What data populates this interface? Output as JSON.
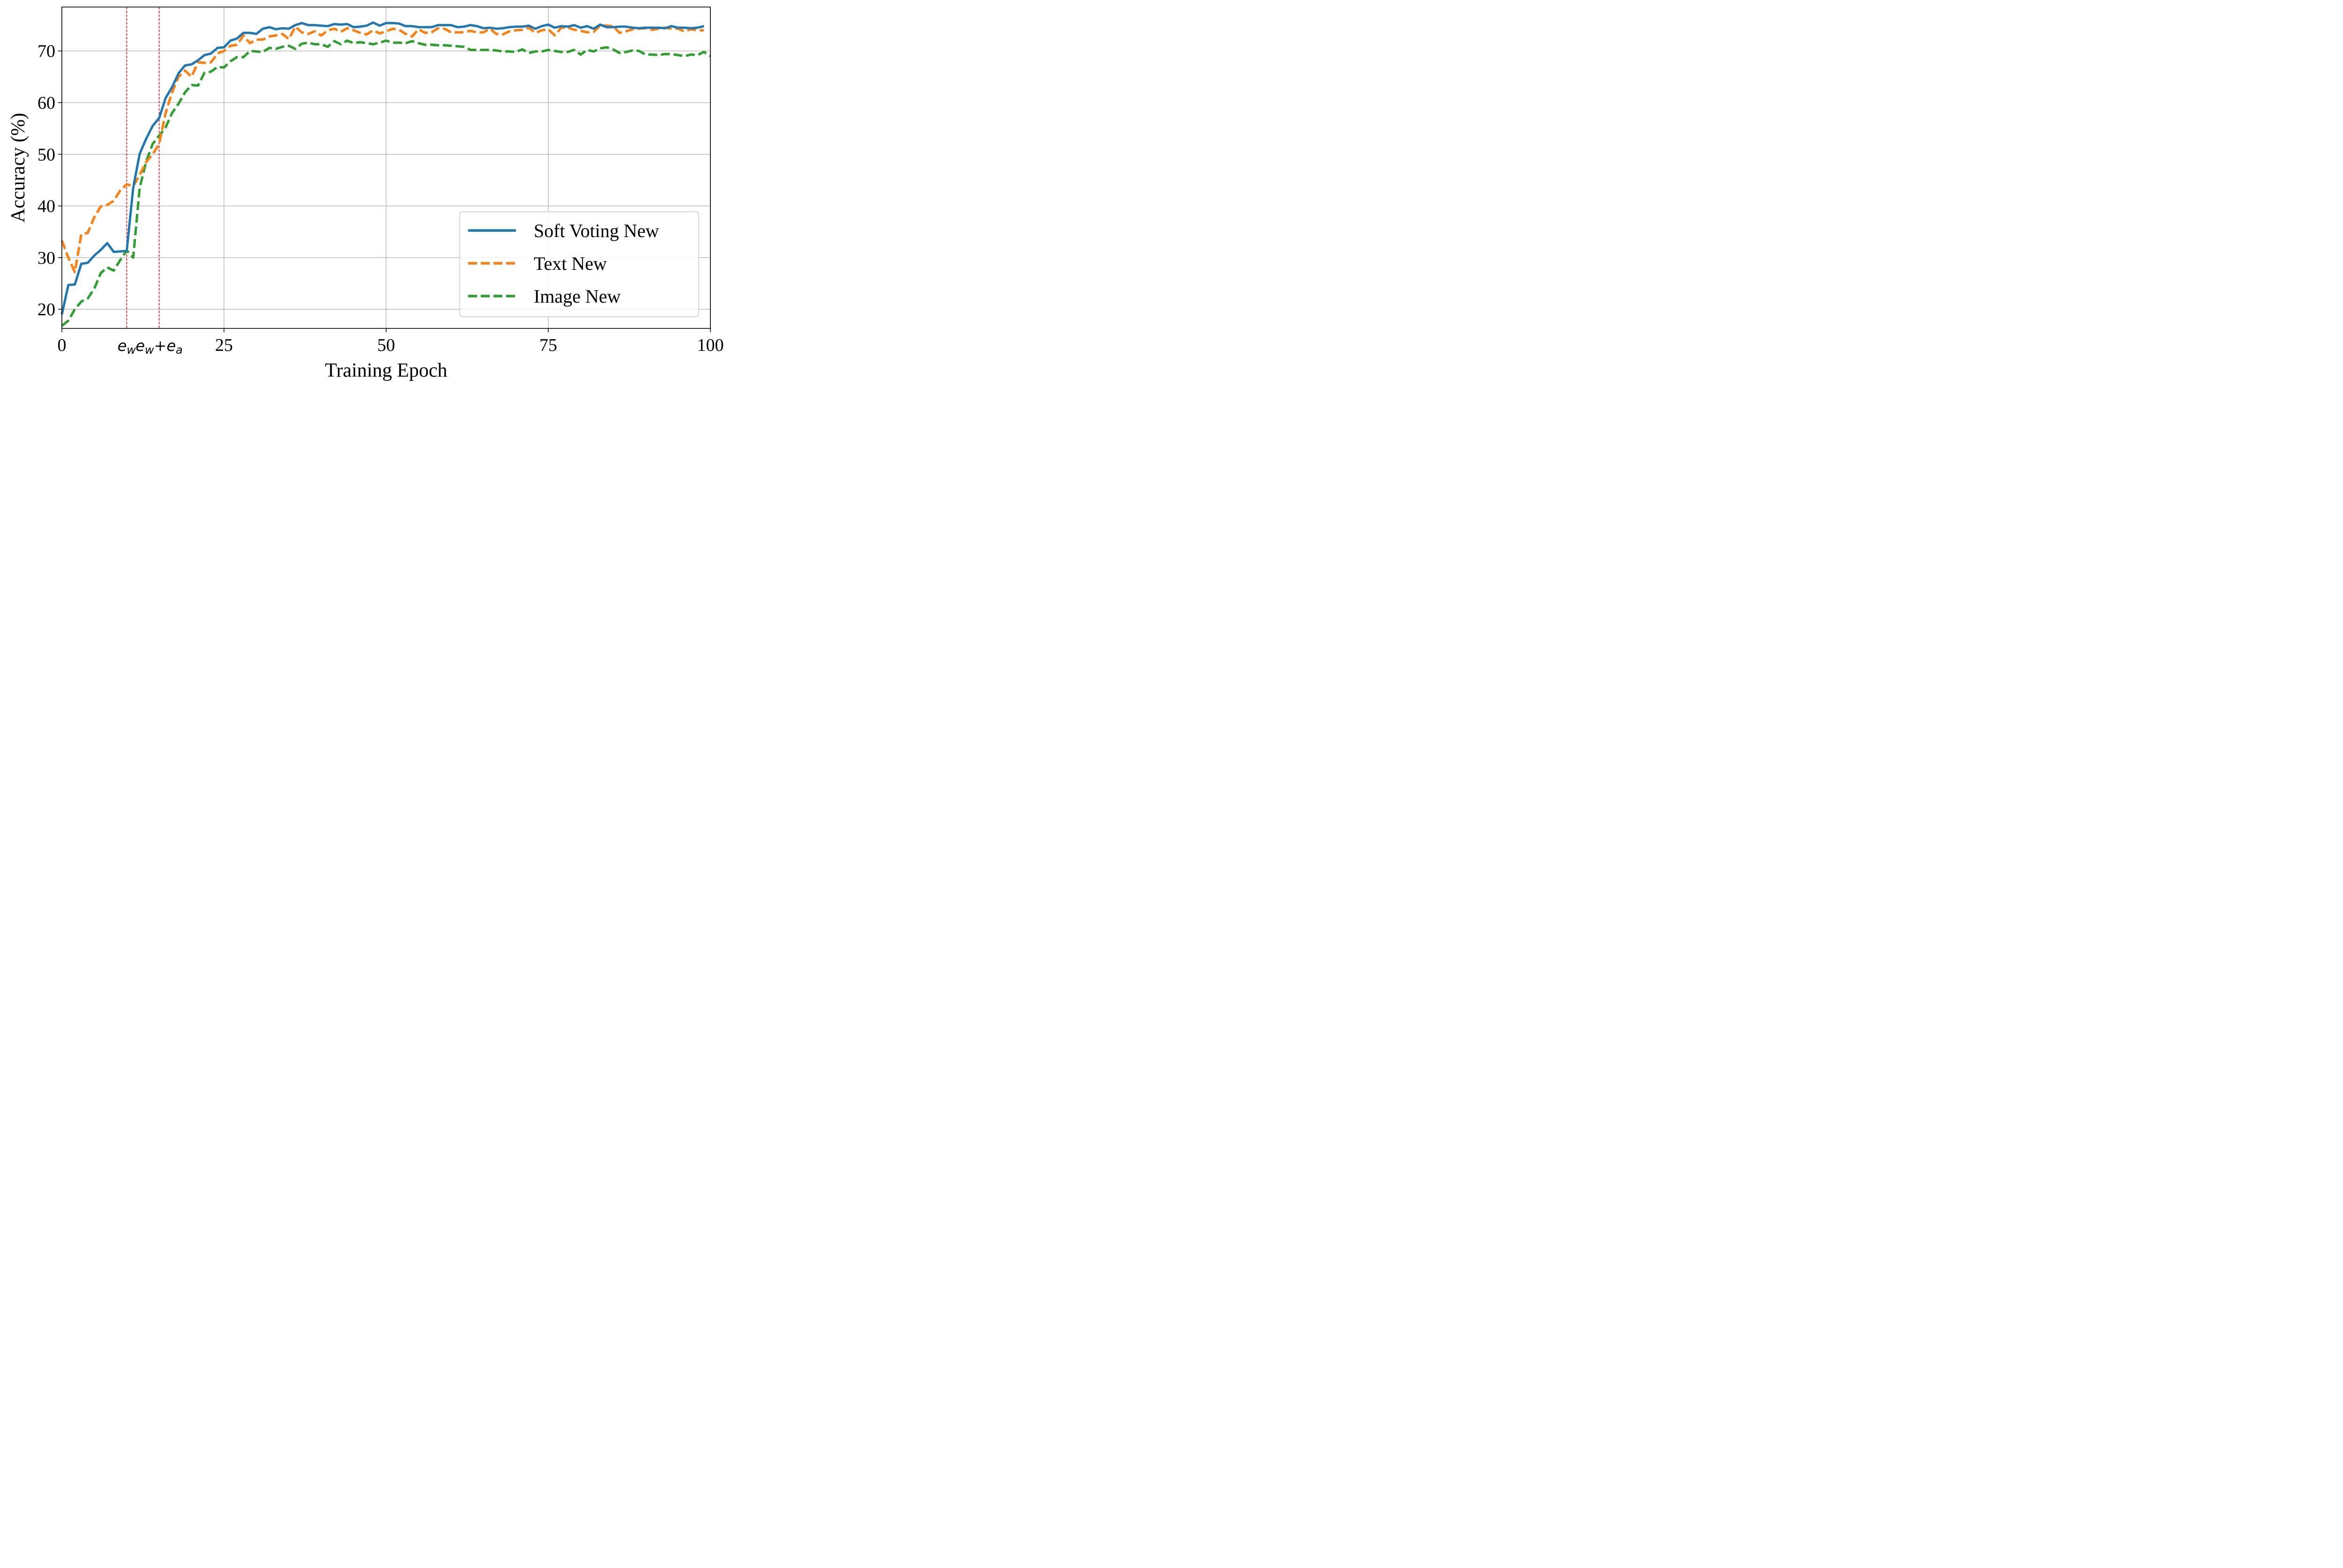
{
  "chart_data": {
    "type": "line",
    "xlabel": "Training Epoch",
    "ylabel": "Accuracy (%)",
    "xlim": [
      0,
      100
    ],
    "ylim": [
      16.3,
      78.5
    ],
    "xticks": [
      0,
      25,
      50,
      75,
      100
    ],
    "xtick_labels": [
      "0",
      "25",
      "50",
      "75",
      "100"
    ],
    "yticks": [
      20,
      30,
      40,
      50,
      60,
      70
    ],
    "ytick_labels": [
      "20",
      "30",
      "40",
      "50",
      "60",
      "70"
    ],
    "grid": true,
    "legend_position": "lower-right",
    "vlines": [
      {
        "x": 10,
        "label_base": "e",
        "label_sub": "w",
        "color": "#ff0000"
      },
      {
        "x": 15,
        "label_base": "e",
        "label_sub": "w",
        "label_plus": "+e",
        "label_sub2": "a",
        "color": "#ff0000"
      }
    ],
    "series": [
      {
        "name": "Soft Voting New",
        "color": "#1f77b4",
        "dash": "solid",
        "values": [
          19.0,
          24.7,
          24.8,
          28.8,
          29.0,
          30.4,
          31.5,
          32.8,
          31.1,
          31.2,
          31.3,
          43.5,
          50.1,
          53.0,
          55.5,
          57.0,
          60.9,
          63.0,
          65.7,
          67.2,
          67.4,
          68.2,
          69.2,
          69.5,
          70.6,
          70.7,
          72.0,
          72.4,
          73.5,
          73.5,
          73.3,
          74.3,
          74.6,
          74.2,
          74.4,
          74.3,
          75.0,
          75.4,
          75.0,
          75.0,
          74.9,
          74.8,
          75.2,
          75.1,
          75.2,
          74.6,
          74.7,
          74.9,
          75.5,
          74.9,
          75.4,
          75.4,
          75.3,
          74.8,
          74.8,
          74.6,
          74.6,
          74.6,
          75.0,
          75.0,
          75.0,
          74.6,
          74.7,
          75.0,
          74.8,
          74.4,
          74.5,
          74.3,
          74.4,
          74.6,
          74.7,
          74.7,
          74.9,
          74.3,
          74.8,
          75.1,
          74.5,
          74.8,
          74.7,
          75.0,
          74.5,
          74.8,
          74.3,
          75.1,
          74.6,
          74.6,
          74.7,
          74.7,
          74.5,
          74.4,
          74.5,
          74.5,
          74.5,
          74.4,
          74.8,
          74.5,
          74.5,
          74.4,
          74.5,
          74.8
        ]
      },
      {
        "name": "Text New",
        "color": "#ff7f0e",
        "dash": "dashed",
        "values": [
          33.3,
          30.0,
          27.2,
          34.5,
          34.8,
          37.8,
          39.9,
          40.2,
          41.0,
          43.0,
          44.2,
          43.8,
          46.0,
          48.5,
          50.0,
          52.0,
          58.0,
          62.0,
          65.0,
          66.2,
          65.0,
          67.8,
          67.7,
          67.8,
          69.5,
          70.0,
          71.0,
          71.2,
          73.0,
          71.5,
          72.2,
          72.2,
          72.8,
          73.0,
          73.3,
          72.3,
          74.7,
          73.6,
          73.3,
          73.8,
          73.0,
          74.0,
          74.3,
          73.7,
          74.4,
          74.0,
          73.5,
          73.2,
          74.0,
          73.4,
          73.8,
          74.3,
          74.1,
          73.3,
          72.8,
          74.2,
          73.5,
          73.6,
          74.4,
          74.3,
          73.6,
          73.6,
          73.6,
          73.9,
          73.6,
          73.6,
          74.3,
          73.3,
          73.2,
          73.8,
          74.0,
          74.1,
          74.5,
          73.5,
          74.0,
          74.2,
          73.0,
          74.5,
          74.5,
          74.1,
          73.9,
          73.6,
          73.7,
          74.9,
          74.9,
          74.8,
          73.5,
          73.8,
          74.2,
          74.3,
          74.4,
          74.1,
          74.3,
          74.5,
          74.3,
          74.3,
          73.8,
          74.2,
          74.0,
          74.0
        ]
      },
      {
        "name": "Image New",
        "color": "#2ca02c",
        "dash": "dashed",
        "values": [
          16.8,
          17.8,
          20.0,
          21.5,
          22.1,
          24.0,
          27.0,
          28.1,
          27.5,
          29.5,
          31.4,
          30.0,
          43.5,
          48.6,
          52.0,
          53.6,
          55.2,
          58.0,
          59.8,
          62.0,
          63.4,
          63.3,
          65.8,
          66.0,
          66.9,
          66.8,
          68.0,
          68.8,
          68.8,
          70.0,
          69.9,
          69.8,
          70.6,
          70.4,
          70.8,
          71.0,
          70.4,
          71.4,
          71.6,
          71.3,
          71.3,
          70.8,
          71.9,
          71.3,
          72.0,
          71.5,
          71.7,
          71.5,
          71.3,
          71.6,
          72.0,
          71.6,
          71.6,
          71.5,
          71.9,
          71.5,
          71.2,
          71.2,
          71.1,
          71.1,
          71.0,
          70.9,
          70.8,
          70.2,
          70.2,
          70.2,
          70.2,
          70.1,
          69.9,
          69.9,
          69.8,
          70.3,
          69.6,
          69.9,
          69.9,
          70.2,
          70.0,
          69.8,
          69.8,
          70.2,
          69.3,
          70.2,
          69.9,
          70.5,
          70.7,
          70.3,
          69.6,
          69.8,
          70.1,
          70.0,
          69.3,
          69.3,
          69.2,
          69.4,
          69.4,
          69.2,
          69.0,
          69.3,
          69.2,
          69.8,
          69.0
        ]
      }
    ]
  }
}
